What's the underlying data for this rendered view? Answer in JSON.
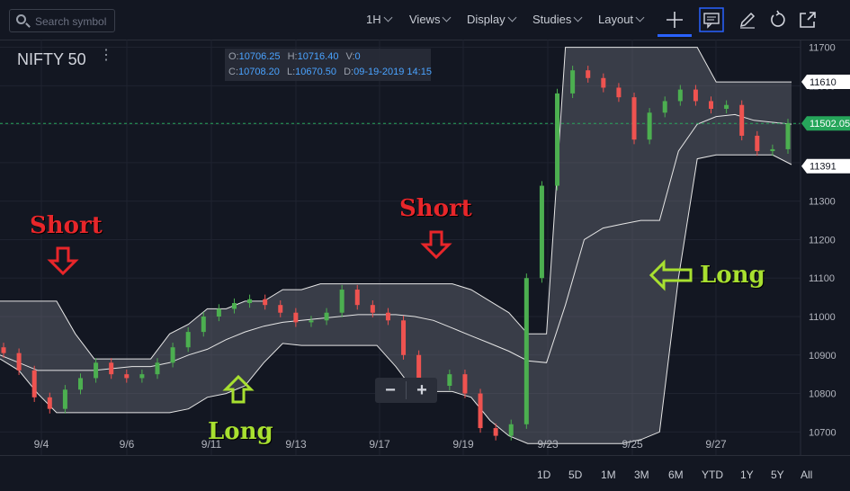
{
  "toolbar": {
    "search_placeholder": "Search symbol",
    "interval": "1H",
    "views": "Views",
    "display": "Display",
    "studies": "Studies",
    "layout": "Layout"
  },
  "legend": {
    "symbol": "NIFTY 50",
    "o_label": "O:",
    "o": "10706.25",
    "h_label": "H:",
    "h": "10716.40",
    "v_label": "V:",
    "v": "0",
    "c_label": "C:",
    "c": "10708.20",
    "l_label": "L:",
    "l": "10670.50",
    "d_label": "D:",
    "d": "09-19-2019 14:15"
  },
  "annotations": {
    "short1": "Short",
    "short2": "Short",
    "long1": "Long",
    "long2": "Long",
    "short_color": "#e8262a",
    "long_color": "#a8e030"
  },
  "timeframes": [
    "1D",
    "5D",
    "1M",
    "3M",
    "6M",
    "YTD",
    "1Y",
    "5Y",
    "All"
  ],
  "chart_data": {
    "type": "line",
    "symbol": "NIFTY 50",
    "interval": "1H",
    "x_tick_labels": [
      "9/4",
      "9/6",
      "9/11",
      "9/13",
      "9/17",
      "9/19",
      "9/23",
      "9/25",
      "9/27"
    ],
    "y_tick_labels": [
      10700,
      10800,
      10900,
      11000,
      11100,
      11200,
      11300,
      11400,
      11500,
      11600,
      11700
    ],
    "ylim": [
      10640,
      11720
    ],
    "price_labels": {
      "upper_band": "11610",
      "last_price": "11502.05",
      "lower_band": "11391"
    },
    "upper_band": [
      11040,
      11040,
      11040,
      11040,
      10955,
      10890,
      10890,
      10890,
      10890,
      10955,
      10980,
      11020,
      11020,
      11040,
      11040,
      11070,
      11070,
      11085,
      11085,
      11085,
      11085,
      11085,
      11085,
      11085,
      11085,
      11070,
      11040,
      11010,
      10955,
      10955,
      11700,
      11700,
      11700,
      11700,
      11700,
      11700,
      11700,
      11700,
      11610,
      11610,
      11610,
      11610,
      11610
    ],
    "middle_line": [
      10900,
      10880,
      10860,
      10860,
      10860,
      10860,
      10865,
      10870,
      10870,
      10880,
      10900,
      10915,
      10940,
      10960,
      10975,
      10985,
      10990,
      10995,
      11000,
      11005,
      11005,
      11005,
      11000,
      10990,
      10970,
      10950,
      10930,
      10910,
      10885,
      10880,
      11030,
      11200,
      11230,
      11240,
      11250,
      11250,
      11430,
      11500,
      11520,
      11525,
      11510,
      11505,
      11500
    ],
    "lower_band": [
      10890,
      10860,
      10800,
      10750,
      10750,
      10750,
      10750,
      10750,
      10750,
      10750,
      10760,
      10790,
      10800,
      10820,
      10880,
      10930,
      10925,
      10925,
      10925,
      10925,
      10925,
      10870,
      10805,
      10805,
      10805,
      10790,
      10730,
      10690,
      10670,
      10670,
      10670,
      10670,
      10670,
      10670,
      10680,
      10700,
      11100,
      11410,
      11420,
      11420,
      11420,
      11420,
      11395
    ],
    "closes": [
      10905,
      10860,
      10790,
      10760,
      10810,
      10840,
      10880,
      10850,
      10840,
      10850,
      10880,
      10920,
      10960,
      11000,
      11020,
      11035,
      11045,
      11030,
      11010,
      10985,
      10990,
      11010,
      11070,
      11030,
      11010,
      10990,
      10900,
      10820,
      10820,
      10850,
      10800,
      10710,
      10690,
      10720,
      11100,
      11340,
      11580,
      11640,
      11620,
      11595,
      11570,
      11460,
      11530,
      11560,
      11590,
      11560,
      11540,
      11550,
      11470,
      11430,
      11435,
      11502
    ]
  }
}
